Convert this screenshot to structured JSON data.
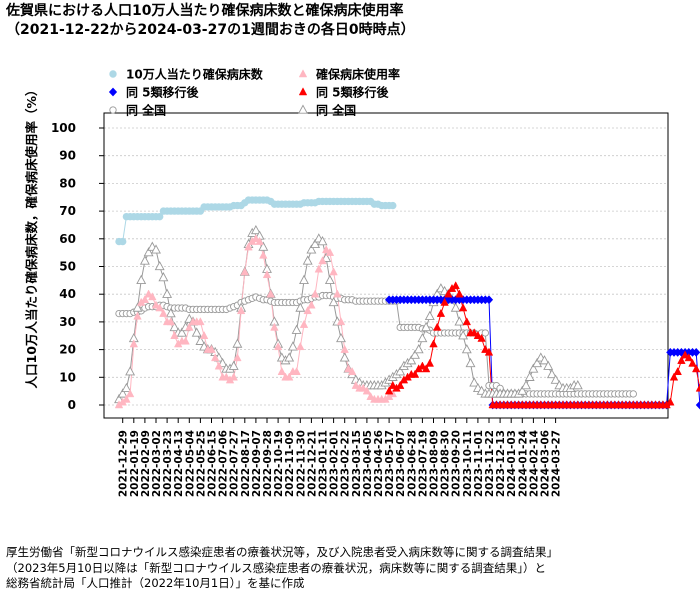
{
  "title": {
    "line1": "佐賀県における人口10万人当たり確保病床数と確保病床使用率",
    "line2": "（2021-12-22から2024-03-27の1週間おきの各日0時時点）"
  },
  "footer": {
    "line1": "厚生労働省「新型コロナウイルス感染症患者の療養状況等，及び入院患者受入病床数等に関する調査結果」",
    "line2": "（2023年5月10日以降は「新型コロナウイルス感染症患者の療養状況，病床数等に関する調査結果」）と",
    "line3": "総務省統計局「人口推計（2022年10月1日）」を基に作成"
  },
  "chart_data": {
    "type": "scatter",
    "ylabel": "人口10万人当たり確保病床数，確保病床使用率（%）",
    "ylim": [
      0,
      100
    ],
    "yticks": [
      0,
      10,
      20,
      30,
      40,
      50,
      60,
      70,
      80,
      90,
      100
    ],
    "grid": "horizontal dotted",
    "legend_position": "top-left",
    "x_start": "2021-12-22",
    "x_interval": "1週間",
    "x_ticklabels": [
      "2021-12-29",
      "2022-01-19",
      "2022-02-09",
      "2022-03-02",
      "2022-03-23",
      "2022-04-13",
      "2022-05-04",
      "2022-05-25",
      "2022-06-15",
      "2022-07-06",
      "2022-07-27",
      "2022-08-17",
      "2022-09-07",
      "2022-09-28",
      "2022-10-19",
      "2022-11-09",
      "2022-11-30",
      "2022-12-21",
      "2023-01-11",
      "2023-02-01",
      "2023-02-22",
      "2023-03-15",
      "2023-04-05",
      "2023-04-26",
      "2023-05-17",
      "2023-06-07",
      "2023-06-28",
      "2023-07-19",
      "2023-08-09",
      "2023-08-30",
      "2023-09-20",
      "2023-10-11",
      "2023-11-01",
      "2023-11-22",
      "2023-12-13",
      "2024-01-03",
      "2024-01-24",
      "2024-02-14",
      "2024-03-06",
      "2024-03-27"
    ],
    "series": [
      {
        "name": "10万人当たり確保病床数",
        "color": "#add8e6",
        "marker": "filled-circle",
        "start_week": 0,
        "values": [
          59,
          59,
          68,
          68,
          68,
          68,
          68,
          68,
          68,
          68,
          68,
          68,
          70,
          70,
          70,
          70,
          70,
          70,
          70,
          70,
          70,
          70,
          70,
          71.5,
          71.5,
          71.5,
          71.5,
          71.5,
          71.5,
          71.5,
          71.5,
          72,
          72,
          72,
          73,
          74,
          74,
          74,
          74,
          74,
          74,
          73.5,
          72.5,
          72.5,
          72.5,
          72.5,
          72.5,
          72.5,
          72.5,
          72.5,
          73,
          73,
          73,
          73,
          73.5,
          73.5,
          73.5,
          73.5,
          73.5,
          73.5,
          73.5,
          73.5,
          73.5,
          73.5,
          73.5,
          73.5,
          73.5,
          73.5,
          73.5,
          72.5,
          72.5,
          72,
          72,
          72,
          72
        ]
      },
      {
        "name": "確保病床使用率",
        "color": "#ffb6c1",
        "marker": "filled-triangle",
        "start_week": 0,
        "values": [
          0,
          1,
          2,
          4,
          22,
          32,
          37,
          38,
          40,
          39,
          36,
          35,
          33,
          30,
          30,
          25,
          22,
          23,
          23,
          28,
          30,
          30,
          30,
          25,
          20,
          20,
          17,
          14,
          10,
          10,
          9,
          10,
          17,
          34,
          48,
          57,
          59,
          60,
          59,
          54,
          47,
          40,
          28,
          21,
          12,
          10,
          10,
          12,
          12,
          21,
          29,
          34,
          36,
          40,
          49,
          52,
          56,
          55,
          48,
          40,
          30,
          20,
          13,
          12,
          7,
          6,
          6,
          5,
          3,
          2,
          2,
          2,
          2,
          3,
          4
        ]
      },
      {
        "name": "同 全国",
        "color": "#999999",
        "marker": "open-circle",
        "start_week": 0,
        "values": [
          33,
          33,
          33,
          33,
          33.5,
          33.5,
          34,
          35,
          35.5,
          35.5,
          35.5,
          36,
          36,
          35.5,
          35,
          35,
          35,
          35,
          35,
          34.5,
          34.5,
          34.5,
          34.5,
          34.5,
          34.5,
          34.5,
          34.5,
          34.5,
          34.5,
          34.5,
          35,
          35.5,
          36,
          37,
          37.5,
          38,
          38.5,
          39,
          38.5,
          38,
          38,
          37.5,
          37,
          37,
          37,
          37,
          37,
          37,
          37,
          37.5,
          38,
          38,
          38.5,
          39,
          39,
          39.5,
          39.5,
          39.5,
          39,
          38.5,
          38.5,
          38,
          38,
          38,
          37.5,
          37.5,
          37.5,
          37.5,
          37.5,
          37.5,
          37.5,
          37.5,
          37.5,
          37.5,
          37.5,
          37.5,
          28,
          28,
          28,
          28,
          28,
          28,
          27.5,
          27.5,
          27,
          26,
          26,
          26,
          26,
          26,
          26,
          26,
          26,
          26,
          26,
          26,
          26,
          25.5,
          26,
          26,
          7,
          7,
          7,
          6,
          4,
          4,
          4,
          4,
          4,
          4,
          4,
          4,
          4,
          4,
          4,
          4,
          4,
          4,
          4,
          4,
          4,
          4,
          4,
          4,
          4,
          4,
          4,
          4,
          4,
          4,
          4,
          4,
          4,
          4,
          4,
          4,
          4,
          4,
          4,
          4
        ]
      },
      {
        "name": "同 全国",
        "color": "#999999",
        "marker": "open-triangle",
        "start_week": 0,
        "values": [
          2,
          4,
          6,
          12,
          24,
          35,
          45,
          52,
          55,
          57,
          56,
          50,
          46,
          40,
          33,
          28,
          26,
          26,
          28,
          31,
          30,
          26,
          23,
          21,
          20,
          20,
          19,
          17,
          15,
          13,
          13,
          14,
          22,
          35,
          48,
          58,
          62,
          63,
          61,
          57,
          49,
          40,
          30,
          22,
          17,
          16,
          17,
          21,
          27,
          35,
          45,
          52,
          56,
          58,
          60,
          59,
          53,
          45,
          37,
          30,
          24,
          17,
          13,
          11,
          9,
          8,
          7,
          7,
          7,
          7,
          7,
          7,
          8,
          9,
          10,
          11,
          12,
          14,
          15,
          16,
          18,
          20,
          24,
          28,
          32,
          37,
          40,
          42,
          41,
          40,
          38,
          35,
          30,
          25,
          20,
          15,
          8,
          6,
          5,
          4,
          4,
          4,
          4,
          4,
          4,
          4,
          4,
          4,
          4,
          5,
          7,
          10,
          13,
          15,
          17,
          16,
          14,
          11,
          9,
          7,
          6,
          6,
          6,
          7,
          7
        ]
      },
      {
        "name": "同 5類移行後",
        "color": "#0000ff",
        "marker": "filled-diamond",
        "start_week": 73,
        "values": [
          38,
          38,
          38,
          38,
          38,
          38,
          38,
          38,
          38,
          38,
          38,
          38,
          38,
          38,
          38,
          38,
          38,
          38,
          38,
          38,
          38,
          38,
          38,
          38,
          38,
          38,
          38,
          38,
          0,
          0,
          0,
          0,
          0,
          0,
          0,
          0,
          0,
          0,
          0,
          0,
          0,
          0,
          0,
          0,
          0,
          0,
          0,
          0,
          0,
          0,
          0,
          0,
          0,
          0,
          0,
          0,
          0,
          0,
          0,
          0,
          0,
          0,
          0,
          0,
          0,
          0,
          0,
          0,
          0,
          0,
          0,
          0,
          0,
          0,
          0,
          0,
          19,
          19,
          19,
          19,
          19,
          19,
          19,
          19,
          0,
          0,
          0,
          0
        ]
      },
      {
        "name": "同 5類移行後",
        "color": "#ff0000",
        "marker": "filled-triangle",
        "start_week": 73,
        "values": [
          5,
          7,
          6,
          7,
          9,
          10,
          11,
          11,
          13,
          14,
          13,
          15,
          22,
          28,
          33,
          37,
          40,
          42,
          43,
          40,
          35,
          30,
          26,
          26,
          25,
          24,
          20,
          19,
          0,
          0,
          0,
          0,
          0,
          0,
          0,
          0,
          0,
          0,
          0,
          0,
          0,
          0,
          0,
          0,
          0,
          0,
          0,
          0,
          0,
          0,
          0,
          0,
          0,
          0,
          0,
          0,
          0,
          0,
          0,
          0,
          0,
          0,
          0,
          0,
          0,
          0,
          0,
          0,
          0,
          0,
          0,
          0,
          0,
          0,
          0,
          0,
          1,
          10,
          12,
          16,
          18,
          17,
          15,
          13,
          6,
          2,
          1,
          0
        ]
      }
    ],
    "legend": {
      "col1": [
        "10万人当たり確保病床数",
        "同 5類移行後",
        "同 全国"
      ],
      "col2": [
        "確保病床使用率",
        "同 5類移行後",
        "同 全国"
      ]
    }
  }
}
